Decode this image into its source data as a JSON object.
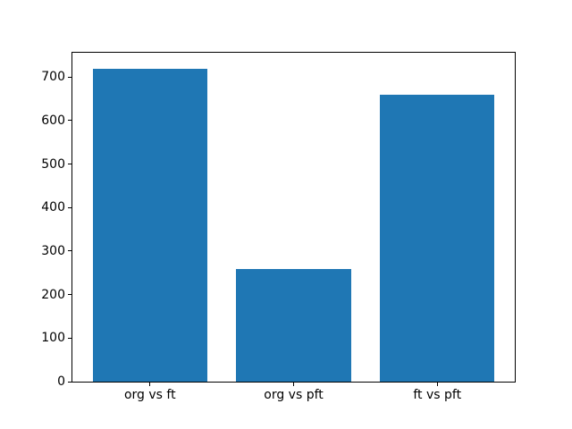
{
  "chart_data": {
    "type": "bar",
    "title": "",
    "xlabel": "",
    "ylabel": "",
    "categories": [
      "org vs ft",
      "org vs pft",
      "ft vs pft"
    ],
    "values": [
      720,
      258,
      659
    ],
    "ylim": [
      0,
      756
    ],
    "yticks": [
      0,
      100,
      200,
      300,
      400,
      500,
      600,
      700
    ],
    "bar_color": "#1f77b4",
    "spine_color": "#000000",
    "background_color": "#ffffff",
    "bar_width_fraction": 0.8,
    "grid": false,
    "legend": null
  }
}
